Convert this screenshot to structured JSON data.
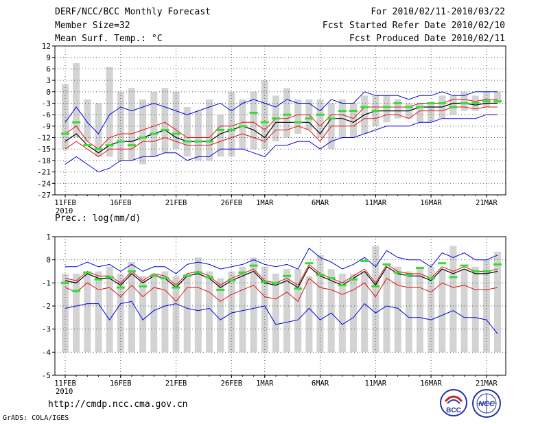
{
  "header": {
    "title": "DERF/NCC/BCC Monthly Forecast",
    "member_size": "Member Size=32",
    "variable": "Mean Surf. Temp.: °C",
    "period": "For 2010/02/11-2010/03/22",
    "started": "Fcst Started Refer Date 2010/02/10",
    "produced": "Fcst Produced Date 2010/02/11"
  },
  "footer": {
    "url": "http://cmdp.ncc.cma.gov.cn",
    "credit": "GrADS: COLA/IGES"
  },
  "logos": {
    "bcc": "BCC",
    "ncc": "NCC"
  },
  "colors": {
    "bar": "#d3d3d3",
    "mean": "#000000",
    "spread": "#e01010",
    "envelope": "#0000e0",
    "obs": "#33dd33",
    "grid": "#555555"
  },
  "chart_data": [
    {
      "type": "line",
      "title": "Mean Surf. Temp.: °C",
      "ylabel": "°C",
      "ylim": [
        -27,
        12
      ],
      "yticks": [
        12,
        9,
        6,
        3,
        0,
        -3,
        -6,
        -9,
        -12,
        -15,
        -18,
        -21,
        -24,
        -27
      ],
      "xticks": [
        {
          "day": 1,
          "label": "11FEB"
        },
        {
          "day": 6,
          "label": "16FEB"
        },
        {
          "day": 11,
          "label": "21FEB"
        },
        {
          "day": 16,
          "label": "26FEB"
        },
        {
          "day": 19,
          "label": "1MAR"
        },
        {
          "day": 24,
          "label": "6MAR"
        },
        {
          "day": 29,
          "label": "11MAR"
        },
        {
          "day": 34,
          "label": "16MAR"
        },
        {
          "day": 39,
          "label": "21MAR"
        }
      ],
      "year_label": "2010",
      "days": 40,
      "bar_low": [
        -15,
        -12,
        -13,
        -17,
        -17,
        -18,
        -18,
        -19,
        -17,
        -16,
        -15,
        -17,
        -18,
        -18,
        -17,
        -17,
        -15,
        -15,
        -15,
        -13,
        -12,
        -11,
        -10,
        -12,
        -15,
        -12,
        -12,
        -11,
        -9,
        -8,
        -7,
        -7,
        -8,
        -8,
        -7,
        -6,
        -5,
        -5,
        -4,
        -3
      ],
      "bar_high": [
        2,
        7.5,
        -2,
        -3,
        6.5,
        0,
        1,
        -2,
        0,
        1,
        0,
        -4,
        -5,
        -2,
        -6,
        0,
        -2,
        0,
        3,
        -1,
        1,
        -2,
        -2,
        -2,
        -3,
        -2,
        -3,
        -1,
        -1,
        -1,
        -2,
        -3,
        -3,
        -3,
        -1,
        -1,
        0,
        -1,
        0,
        0
      ],
      "series": [
        {
          "name": "ensemble mean",
          "values": [
            -13,
            -11,
            -14,
            -16,
            -14,
            -13,
            -13,
            -12,
            -11,
            -10,
            -12,
            -13,
            -13,
            -13,
            -11,
            -10,
            -9,
            -10,
            -12,
            -8,
            -8,
            -8,
            -8,
            -11,
            -7,
            -7,
            -8,
            -6,
            -5,
            -5,
            -5,
            -5,
            -4,
            -4,
            -4,
            -3,
            -3,
            -3.5,
            -3,
            -3
          ]
        },
        {
          "name": "spread upper",
          "values": [
            -11,
            -9,
            -13,
            -15,
            -12,
            -11,
            -11,
            -10,
            -9,
            -8,
            -10,
            -12,
            -12,
            -12,
            -9,
            -9,
            -8,
            -8,
            -10,
            -7,
            -7,
            -6,
            -6,
            -9,
            -6,
            -6,
            -7,
            -4,
            -4,
            -4,
            -4,
            -4,
            -3,
            -3,
            -3,
            -2,
            -2,
            -2.5,
            -2,
            -2
          ]
        },
        {
          "name": "spread lower",
          "values": [
            -15,
            -13,
            -15,
            -17,
            -15,
            -15,
            -15,
            -13,
            -13,
            -12,
            -13,
            -14,
            -14,
            -14,
            -13,
            -12,
            -11,
            -12,
            -13,
            -10,
            -10,
            -9,
            -10,
            -13,
            -9,
            -9,
            -9,
            -7,
            -7,
            -6,
            -6,
            -7,
            -5,
            -5,
            -5,
            -4,
            -4,
            -4.5,
            -4,
            -4
          ]
        },
        {
          "name": "envelope max",
          "values": [
            -8,
            -4,
            -8,
            -11,
            -6,
            -4,
            -5,
            -4,
            -3,
            -4,
            -5,
            -6,
            -5,
            -4,
            -3,
            -5,
            -3,
            -2,
            -3,
            -4,
            -2,
            -3,
            -3,
            -5,
            -2,
            -3,
            -3,
            0,
            -1,
            -1,
            -1,
            -2,
            -1,
            -1,
            0,
            -1,
            -1,
            0,
            0,
            0
          ]
        },
        {
          "name": "envelope min",
          "values": [
            -19,
            -17,
            -19,
            -21,
            -20,
            -18,
            -18,
            -17,
            -17,
            -16,
            -16,
            -18,
            -17,
            -17,
            -15,
            -15,
            -15,
            -16,
            -17,
            -14,
            -14,
            -13,
            -13,
            -15,
            -13,
            -12,
            -12,
            -11,
            -10,
            -9,
            -9,
            -9,
            -8,
            -8,
            -7,
            -7,
            -7,
            -7,
            -6,
            -6
          ]
        },
        {
          "name": "observed",
          "values": [
            -11,
            -8,
            -14,
            -15,
            -14,
            -13,
            -14,
            -12,
            -11,
            -10,
            -11,
            -13,
            -13,
            -13,
            -10,
            -10,
            -9,
            -5.5,
            -8,
            -7,
            -6,
            -8,
            -7,
            -6,
            -7,
            -5,
            -5,
            -4,
            -5,
            -4,
            -3,
            -4,
            -4,
            -3,
            -3,
            -4,
            -3,
            -3,
            -2.5,
            -2.5
          ]
        }
      ]
    },
    {
      "type": "line",
      "title": "Prec.: log(mm/d)",
      "ylabel": "log(mm/d)",
      "ylim": [
        -5,
        1
      ],
      "yticks": [
        1,
        0,
        -1,
        -2,
        -3,
        -4,
        -5
      ],
      "xticks": [
        {
          "day": 1,
          "label": "11FEB"
        },
        {
          "day": 6,
          "label": "16FEB"
        },
        {
          "day": 11,
          "label": "21FEB"
        },
        {
          "day": 16,
          "label": "26FEB"
        },
        {
          "day": 19,
          "label": "1MAR"
        },
        {
          "day": 24,
          "label": "6MAR"
        },
        {
          "day": 29,
          "label": "11MAR"
        },
        {
          "day": 34,
          "label": "16MAR"
        },
        {
          "day": 39,
          "label": "21MAR"
        }
      ],
      "year_label": "2010",
      "days": 40,
      "bar_low": [
        -4,
        -4,
        -4,
        -4,
        -4,
        -4,
        -4,
        -4,
        -4,
        -4,
        -4,
        -4,
        -4,
        -4,
        -4,
        -4,
        -4,
        -4,
        -4,
        -4,
        -4,
        -4,
        -4,
        -4,
        -4,
        -4,
        -4,
        -4,
        -4,
        -4,
        -4,
        -4,
        -4,
        -4,
        -4,
        -4,
        -4,
        -4,
        -4,
        -4
      ],
      "bar_high": [
        -0.6,
        -0.6,
        -0.6,
        -0.5,
        -0.3,
        -0.6,
        -0.1,
        -0.7,
        -0.6,
        -0.5,
        -0.7,
        -0.6,
        0.1,
        -0.5,
        -0.8,
        -0.5,
        -0.3,
        0.1,
        -0.3,
        -0.6,
        -0.4,
        -0.4,
        -0.7,
        0.2,
        -0.4,
        -0.6,
        -0.6,
        -0.5,
        0.6,
        -0.4,
        -0.3,
        -0.5,
        -0.3,
        -0.3,
        -0.4,
        0.6,
        -0.4,
        -0.3,
        0.0,
        0.35
      ],
      "series": [
        {
          "name": "ensemble mean",
          "values": [
            -0.9,
            -1.0,
            -0.6,
            -0.8,
            -0.8,
            -1.1,
            -0.6,
            -1.0,
            -0.7,
            -0.8,
            -1.2,
            -0.7,
            -0.6,
            -0.8,
            -1.2,
            -0.9,
            -0.7,
            -0.5,
            -1.0,
            -1.1,
            -0.9,
            -1.2,
            -0.3,
            -0.7,
            -0.9,
            -1.1,
            -0.8,
            -0.5,
            -1.1,
            -0.3,
            -0.6,
            -0.7,
            -0.7,
            -0.9,
            -0.4,
            -0.6,
            -0.4,
            -0.6,
            -0.6,
            -0.5
          ]
        },
        {
          "name": "spread upper",
          "values": [
            -0.8,
            -0.9,
            -0.5,
            -0.7,
            -0.7,
            -1.0,
            -0.5,
            -0.9,
            -0.6,
            -0.7,
            -1.1,
            -0.6,
            -0.5,
            -0.7,
            -1.1,
            -0.8,
            -0.6,
            -0.4,
            -0.9,
            -1.0,
            -0.8,
            -1.1,
            -0.2,
            -0.6,
            -0.8,
            -1.0,
            -0.7,
            -0.4,
            -1.0,
            -0.2,
            -0.5,
            -0.6,
            -0.6,
            -0.8,
            -0.3,
            -0.5,
            -0.3,
            -0.5,
            -0.5,
            -0.4
          ]
        },
        {
          "name": "spread lower",
          "values": [
            -1.2,
            -1.4,
            -1.0,
            -1.3,
            -1.2,
            -1.6,
            -1.1,
            -1.6,
            -1.2,
            -1.3,
            -1.8,
            -1.2,
            -1.2,
            -1.4,
            -1.8,
            -1.5,
            -1.3,
            -1.1,
            -1.6,
            -1.7,
            -1.4,
            -1.8,
            -0.8,
            -1.2,
            -1.3,
            -1.5,
            -1.3,
            -1.0,
            -1.6,
            -0.8,
            -1.1,
            -1.2,
            -1.2,
            -1.4,
            -1.0,
            -1.2,
            -1.1,
            -1.3,
            -1.3,
            -1.2
          ]
        },
        {
          "name": "envelope max",
          "values": [
            -0.3,
            -0.3,
            -0.1,
            -0.3,
            -0.2,
            -0.5,
            -0.2,
            -0.5,
            -0.3,
            -0.3,
            -0.6,
            -0.2,
            -0.1,
            -0.2,
            -0.4,
            -0.3,
            -0.2,
            0.0,
            -0.2,
            -0.3,
            -0.2,
            -0.4,
            0.5,
            0.1,
            -0.1,
            -0.4,
            -0.2,
            0.1,
            -0.3,
            0.4,
            0.1,
            0.0,
            0.0,
            -0.3,
            0.3,
            0.1,
            0.3,
            0.0,
            0.0,
            0.2
          ]
        },
        {
          "name": "envelope min",
          "values": [
            -2.1,
            -2.0,
            -1.9,
            -1.9,
            -2.6,
            -1.9,
            -1.8,
            -2.6,
            -2.2,
            -2.0,
            -1.9,
            -2.1,
            -2.2,
            -2.1,
            -2.6,
            -2.3,
            -2.2,
            -2.1,
            -2.0,
            -2.8,
            -2.7,
            -2.6,
            -2.1,
            -2.6,
            -2.3,
            -2.8,
            -2.5,
            -1.9,
            -2.3,
            -2.0,
            -2.1,
            -2.5,
            -2.5,
            -2.6,
            -2.4,
            -2.2,
            -2.5,
            -2.5,
            -2.6,
            -3.2
          ]
        },
        {
          "name": "observed",
          "values": [
            -1.0,
            -1.35,
            -0.55,
            -0.85,
            -0.75,
            -1.2,
            -0.5,
            -1.15,
            -0.7,
            -0.8,
            -1.2,
            -0.7,
            -0.55,
            -0.75,
            -1.3,
            -0.9,
            -0.55,
            -0.25,
            -0.95,
            -1.0,
            -0.7,
            -1.25,
            -0.15,
            -0.65,
            -0.8,
            -1.1,
            -0.85,
            -0.05,
            -1.15,
            -0.2,
            -0.55,
            -0.65,
            -0.35,
            -0.8,
            -0.15,
            -0.75,
            -0.25,
            -0.5,
            -0.5,
            -0.2
          ]
        }
      ]
    }
  ]
}
